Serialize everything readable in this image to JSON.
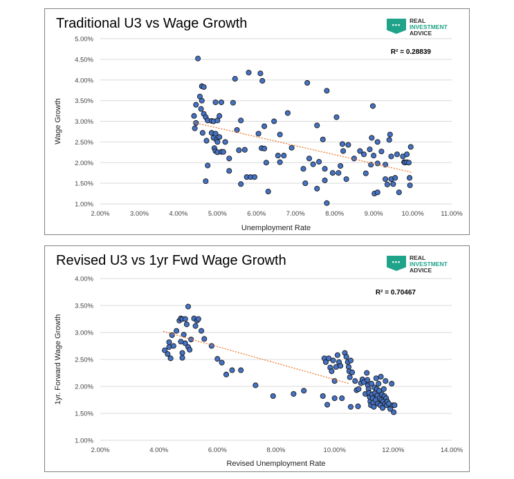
{
  "logo": {
    "line1": "REAL",
    "line2": "INVESTMENT",
    "line3": "ADVICE",
    "badge": "•••"
  },
  "colors": {
    "marker": "#4472c4",
    "marker_edge": "#1a1a1a",
    "trend": "#ed7d31",
    "grid": "#d9d9d9"
  },
  "chart_data": [
    {
      "type": "scatter",
      "title": "Traditional U3 vs Wage Growth",
      "xlabel": "Unemployment Rate",
      "ylabel": "Wage Growth",
      "xlim": [
        0.02,
        0.11
      ],
      "ylim": [
        0.01,
        0.05
      ],
      "xticks": [
        "2.00%",
        "3.00%",
        "4.00%",
        "5.00%",
        "6.00%",
        "7.00%",
        "8.00%",
        "9.00%",
        "10.00%",
        "11.00%"
      ],
      "yticks": [
        "1.00%",
        "1.50%",
        "2.00%",
        "2.50%",
        "3.00%",
        "3.50%",
        "4.00%",
        "4.50%",
        "5.00%"
      ],
      "annotation": "R² = 0.28839",
      "grid": "horizontal",
      "trendline": {
        "x": [
          0.044,
          0.1
        ],
        "y": [
          0.0297,
          0.0176
        ]
      },
      "points": [
        [
          0.045,
          0.0452
        ],
        [
          0.046,
          0.0385
        ],
        [
          0.0465,
          0.0383
        ],
        [
          0.0455,
          0.036
        ],
        [
          0.046,
          0.035
        ],
        [
          0.0445,
          0.034
        ],
        [
          0.0458,
          0.033
        ],
        [
          0.0465,
          0.0318
        ],
        [
          0.044,
          0.0313
        ],
        [
          0.047,
          0.031
        ],
        [
          0.0475,
          0.0302
        ],
        [
          0.0485,
          0.0301
        ],
        [
          0.049,
          0.03
        ],
        [
          0.05,
          0.0302
        ],
        [
          0.0495,
          0.0346
        ],
        [
          0.051,
          0.0346
        ],
        [
          0.0505,
          0.0313
        ],
        [
          0.0445,
          0.0296
        ],
        [
          0.0442,
          0.0283
        ],
        [
          0.0462,
          0.0272
        ],
        [
          0.0472,
          0.0253
        ],
        [
          0.0485,
          0.0272
        ],
        [
          0.049,
          0.026
        ],
        [
          0.0495,
          0.027
        ],
        [
          0.0498,
          0.0255
        ],
        [
          0.05,
          0.025
        ],
        [
          0.0505,
          0.0262
        ],
        [
          0.0492,
          0.0235
        ],
        [
          0.0495,
          0.0228
        ],
        [
          0.05,
          0.0225
        ],
        [
          0.051,
          0.0226
        ],
        [
          0.0515,
          0.0226
        ],
        [
          0.052,
          0.025
        ],
        [
          0.0475,
          0.0193
        ],
        [
          0.047,
          0.0155
        ],
        [
          0.053,
          0.021
        ],
        [
          0.053,
          0.018
        ],
        [
          0.054,
          0.0345
        ],
        [
          0.0545,
          0.0403
        ],
        [
          0.055,
          0.0279
        ],
        [
          0.0555,
          0.023
        ],
        [
          0.056,
          0.0302
        ],
        [
          0.056,
          0.0148
        ],
        [
          0.057,
          0.0231
        ],
        [
          0.0575,
          0.0165
        ],
        [
          0.058,
          0.0418
        ],
        [
          0.0585,
          0.0165
        ],
        [
          0.0595,
          0.0165
        ],
        [
          0.0605,
          0.027
        ],
        [
          0.061,
          0.0416
        ],
        [
          0.0615,
          0.0398
        ],
        [
          0.062,
          0.0288
        ],
        [
          0.0613,
          0.0235
        ],
        [
          0.062,
          0.0234
        ],
        [
          0.0625,
          0.02
        ],
        [
          0.063,
          0.013
        ],
        [
          0.0645,
          0.03
        ],
        [
          0.0655,
          0.0217
        ],
        [
          0.066,
          0.0201
        ],
        [
          0.066,
          0.0268
        ],
        [
          0.067,
          0.0217
        ],
        [
          0.068,
          0.032
        ],
        [
          0.069,
          0.0236
        ],
        [
          0.072,
          0.0185
        ],
        [
          0.0725,
          0.015
        ],
        [
          0.073,
          0.0393
        ],
        [
          0.0735,
          0.021
        ],
        [
          0.0745,
          0.0196
        ],
        [
          0.0755,
          0.029
        ],
        [
          0.076,
          0.0202
        ],
        [
          0.0755,
          0.0137
        ],
        [
          0.077,
          0.0256
        ],
        [
          0.0775,
          0.0185
        ],
        [
          0.0775,
          0.0157
        ],
        [
          0.078,
          0.0374
        ],
        [
          0.078,
          0.0102
        ],
        [
          0.0795,
          0.0175
        ],
        [
          0.0805,
          0.031
        ],
        [
          0.081,
          0.0175
        ],
        [
          0.0815,
          0.0192
        ],
        [
          0.082,
          0.0245
        ],
        [
          0.0822,
          0.0228
        ],
        [
          0.083,
          0.016
        ],
        [
          0.0835,
          0.0243
        ],
        [
          0.085,
          0.021
        ],
        [
          0.0865,
          0.0228
        ],
        [
          0.0875,
          0.022
        ],
        [
          0.088,
          0.0174
        ],
        [
          0.089,
          0.0232
        ],
        [
          0.0895,
          0.026
        ],
        [
          0.0898,
          0.0337
        ],
        [
          0.0893,
          0.0195
        ],
        [
          0.09,
          0.0217
        ],
        [
          0.0902,
          0.0125
        ],
        [
          0.091,
          0.0128
        ],
        [
          0.091,
          0.025
        ],
        [
          0.091,
          0.0198
        ],
        [
          0.092,
          0.0227
        ],
        [
          0.093,
          0.0195
        ],
        [
          0.093,
          0.016
        ],
        [
          0.0935,
          0.0147
        ],
        [
          0.094,
          0.0255
        ],
        [
          0.0942,
          0.0268
        ],
        [
          0.0945,
          0.0215
        ],
        [
          0.0945,
          0.016
        ],
        [
          0.095,
          0.0148
        ],
        [
          0.0955,
          0.0163
        ],
        [
          0.096,
          0.022
        ],
        [
          0.0965,
          0.0128
        ],
        [
          0.0975,
          0.0215
        ],
        [
          0.0978,
          0.0201
        ],
        [
          0.098,
          0.02
        ],
        [
          0.0985,
          0.022
        ],
        [
          0.0985,
          0.0201
        ],
        [
          0.099,
          0.02
        ],
        [
          0.0992,
          0.0163
        ],
        [
          0.0993,
          0.0145
        ],
        [
          0.0995,
          0.0238
        ]
      ]
    },
    {
      "type": "scatter",
      "title": "Revised U3 vs 1yr Fwd Wage Growth",
      "xlabel": "Revised Unemployment Rate",
      "ylabel": "1yr. Forward Wage Growth",
      "xlim": [
        0.02,
        0.14
      ],
      "ylim": [
        0.01,
        0.04
      ],
      "xticks": [
        "2.00%",
        "4.00%",
        "6.00%",
        "8.00%",
        "10.00%",
        "12.00%",
        "14.00%"
      ],
      "yticks": [
        "1.00%",
        "1.50%",
        "2.00%",
        "2.50%",
        "3.00%",
        "3.50%",
        "4.00%"
      ],
      "annotation": "R² = 0.70467",
      "grid": "horizontal",
      "trendline": {
        "x": [
          0.0415,
          0.105
        ],
        "y": [
          0.0302,
          0.0205
        ]
      },
      "points": [
        [
          0.042,
          0.0267
        ],
        [
          0.043,
          0.026
        ],
        [
          0.0435,
          0.0273
        ],
        [
          0.044,
          0.0252
        ],
        [
          0.0435,
          0.0282
        ],
        [
          0.0445,
          0.0295
        ],
        [
          0.045,
          0.0275
        ],
        [
          0.046,
          0.0303
        ],
        [
          0.047,
          0.0322
        ],
        [
          0.0475,
          0.0326
        ],
        [
          0.048,
          0.0325
        ],
        [
          0.049,
          0.0325
        ],
        [
          0.0495,
          0.0315
        ],
        [
          0.05,
          0.0348
        ],
        [
          0.0485,
          0.0296
        ],
        [
          0.049,
          0.028
        ],
        [
          0.0475,
          0.0283
        ],
        [
          0.048,
          0.0262
        ],
        [
          0.048,
          0.0253
        ],
        [
          0.05,
          0.0273
        ],
        [
          0.0505,
          0.0268
        ],
        [
          0.051,
          0.0287
        ],
        [
          0.052,
          0.0326
        ],
        [
          0.053,
          0.0322
        ],
        [
          0.0535,
          0.0325
        ],
        [
          0.0525,
          0.0312
        ],
        [
          0.0545,
          0.0303
        ],
        [
          0.0555,
          0.0288
        ],
        [
          0.058,
          0.0275
        ],
        [
          0.06,
          0.0251
        ],
        [
          0.0615,
          0.0244
        ],
        [
          0.063,
          0.0222
        ],
        [
          0.065,
          0.023
        ],
        [
          0.068,
          0.023
        ],
        [
          0.073,
          0.0202
        ],
        [
          0.079,
          0.0182
        ],
        [
          0.086,
          0.0186
        ],
        [
          0.0895,
          0.0192
        ],
        [
          0.096,
          0.0182
        ],
        [
          0.0965,
          0.0252
        ],
        [
          0.097,
          0.0245
        ],
        [
          0.0975,
          0.0166
        ],
        [
          0.098,
          0.0252
        ],
        [
          0.0985,
          0.0235
        ],
        [
          0.099,
          0.0228
        ],
        [
          0.0995,
          0.0248
        ],
        [
          0.1,
          0.0178
        ],
        [
          0.1,
          0.021
        ],
        [
          0.1005,
          0.0236
        ],
        [
          0.101,
          0.0258
        ],
        [
          0.1015,
          0.0245
        ],
        [
          0.102,
          0.0238
        ],
        [
          0.1025,
          0.0178
        ],
        [
          0.1035,
          0.0262
        ],
        [
          0.104,
          0.0255
        ],
        [
          0.1045,
          0.0245
        ],
        [
          0.1048,
          0.0236
        ],
        [
          0.105,
          0.0228
        ],
        [
          0.1052,
          0.0217
        ],
        [
          0.1055,
          0.0248
        ],
        [
          0.106,
          0.0226
        ],
        [
          0.1055,
          0.0162
        ],
        [
          0.107,
          0.021
        ],
        [
          0.1075,
          0.0193
        ],
        [
          0.108,
          0.0163
        ],
        [
          0.1082,
          0.0195
        ],
        [
          0.109,
          0.0206
        ],
        [
          0.1095,
          0.0213
        ],
        [
          0.11,
          0.0208
        ],
        [
          0.1105,
          0.0186
        ],
        [
          0.111,
          0.0225
        ],
        [
          0.1112,
          0.0212
        ],
        [
          0.1114,
          0.0202
        ],
        [
          0.1116,
          0.0195
        ],
        [
          0.1118,
          0.0188
        ],
        [
          0.112,
          0.018
        ],
        [
          0.1122,
          0.0172
        ],
        [
          0.1124,
          0.0165
        ],
        [
          0.1126,
          0.0205
        ],
        [
          0.1128,
          0.0185
        ],
        [
          0.113,
          0.0178
        ],
        [
          0.1132,
          0.017
        ],
        [
          0.1134,
          0.0162
        ],
        [
          0.1136,
          0.0198
        ],
        [
          0.1138,
          0.0188
        ],
        [
          0.114,
          0.0175
        ],
        [
          0.1142,
          0.0215
        ],
        [
          0.1144,
          0.0195
        ],
        [
          0.1146,
          0.0183
        ],
        [
          0.1148,
          0.0168
        ],
        [
          0.115,
          0.0205
        ],
        [
          0.1152,
          0.0192
        ],
        [
          0.1154,
          0.0178
        ],
        [
          0.1156,
          0.0165
        ],
        [
          0.1158,
          0.0218
        ],
        [
          0.116,
          0.0175
        ],
        [
          0.1162,
          0.0185
        ],
        [
          0.1164,
          0.016
        ],
        [
          0.1166,
          0.0172
        ],
        [
          0.1168,
          0.0195
        ],
        [
          0.117,
          0.0182
        ],
        [
          0.1172,
          0.0168
        ],
        [
          0.1174,
          0.021
        ],
        [
          0.1176,
          0.0178
        ],
        [
          0.1178,
          0.0165
        ],
        [
          0.118,
          0.0172
        ],
        [
          0.1185,
          0.0168
        ],
        [
          0.119,
          0.0158
        ],
        [
          0.1195,
          0.0205
        ],
        [
          0.12,
          0.0165
        ],
        [
          0.1202,
          0.0152
        ],
        [
          0.1205,
          0.0165
        ]
      ]
    }
  ]
}
